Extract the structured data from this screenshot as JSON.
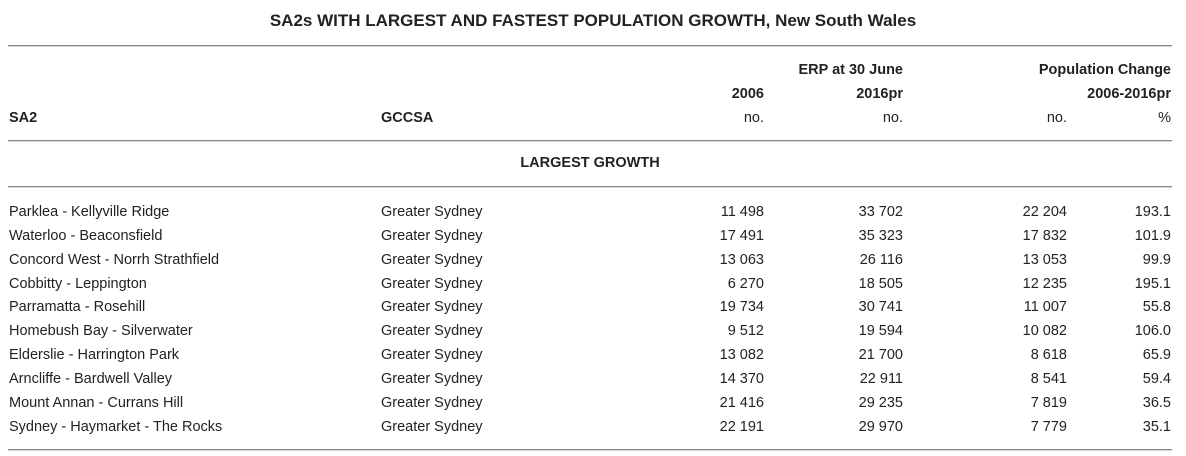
{
  "title": "SA2s WITH LARGEST AND FASTEST POPULATION GROWTH, New South Wales",
  "header": {
    "group_erp": "ERP at 30 June",
    "group_change": "Population Change",
    "year_2006": "2006",
    "year_2016": "2016pr",
    "change_period": "2006-2016pr",
    "col_sa2": "SA2",
    "col_gccsa": "GCCSA",
    "unit_no_1": "no.",
    "unit_no_2": "no.",
    "unit_no_3": "no.",
    "unit_pct": "%"
  },
  "section_label": "LARGEST GROWTH",
  "rows": [
    {
      "sa2": "Parklea - Kellyville Ridge",
      "gccsa": "Greater Sydney",
      "erp2006": "11 498",
      "erp2016": "33 702",
      "change_no": "22 204",
      "change_pct": "193.1"
    },
    {
      "sa2": "Waterloo - Beaconsfield",
      "gccsa": "Greater Sydney",
      "erp2006": "17 491",
      "erp2016": "35 323",
      "change_no": "17 832",
      "change_pct": "101.9"
    },
    {
      "sa2": "Concord West - Norrh Strathfield",
      "gccsa": "Greater Sydney",
      "erp2006": "13 063",
      "erp2016": "26 116",
      "change_no": "13 053",
      "change_pct": "99.9"
    },
    {
      "sa2": "Cobbitty - Leppington",
      "gccsa": "Greater Sydney",
      "erp2006": "6 270",
      "erp2016": "18 505",
      "change_no": "12 235",
      "change_pct": "195.1"
    },
    {
      "sa2": "Parramatta - Rosehill",
      "gccsa": "Greater Sydney",
      "erp2006": "19 734",
      "erp2016": "30 741",
      "change_no": "11 007",
      "change_pct": "55.8"
    },
    {
      "sa2": "Homebush Bay - Silverwater",
      "gccsa": "Greater Sydney",
      "erp2006": "9 512",
      "erp2016": "19 594",
      "change_no": "10 082",
      "change_pct": "106.0"
    },
    {
      "sa2": "Elderslie - Harrington Park",
      "gccsa": "Greater Sydney",
      "erp2006": "13 082",
      "erp2016": "21 700",
      "change_no": "8 618",
      "change_pct": "65.9"
    },
    {
      "sa2": "Arncliffe - Bardwell Valley",
      "gccsa": "Greater Sydney",
      "erp2006": "14 370",
      "erp2016": "22 911",
      "change_no": "8 541",
      "change_pct": "59.4"
    },
    {
      "sa2": "Mount Annan - Currans Hill",
      "gccsa": "Greater Sydney",
      "erp2006": "21 416",
      "erp2016": "29 235",
      "change_no": "7 819",
      "change_pct": "36.5"
    },
    {
      "sa2": "Sydney - Haymarket - The Rocks",
      "gccsa": "Greater Sydney",
      "erp2006": "22 191",
      "erp2016": "29 970",
      "change_no": "7 779",
      "change_pct": "35.1"
    }
  ]
}
